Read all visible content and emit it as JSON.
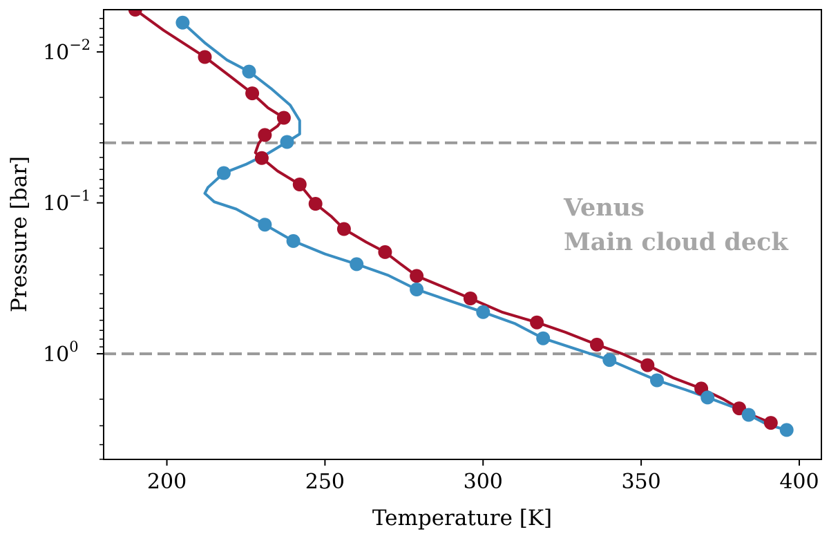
{
  "chart_data": {
    "type": "line",
    "xlabel": "Temperature [K]",
    "ylabel": "Pressure [bar]",
    "xlim": [
      180,
      407
    ],
    "ylim_log10": [
      -2.28,
      0.7
    ],
    "y_scale": "log",
    "y_inverted": true,
    "grid": false,
    "x_ticks": [
      {
        "value": 200,
        "label": "200"
      },
      {
        "value": 250,
        "label": "250"
      },
      {
        "value": 300,
        "label": "300"
      },
      {
        "value": 350,
        "label": "350"
      },
      {
        "value": 400,
        "label": "400"
      }
    ],
    "y_ticks": [
      {
        "log10": -2,
        "base": "10",
        "exp": "−2"
      },
      {
        "log10": -1,
        "base": "10",
        "exp": "−1"
      },
      {
        "log10": 0,
        "base": "10",
        "exp": "0"
      }
    ],
    "hlines": [
      {
        "pressure": 0.04,
        "color": "#999999",
        "style": "dashed"
      },
      {
        "pressure": 1.0,
        "color": "#999999",
        "style": "dashed"
      }
    ],
    "annotations": [
      {
        "lines": [
          "Venus",
          "Main cloud deck"
        ],
        "color": "#a6a6a6"
      }
    ],
    "series": [
      {
        "name": "red-profile",
        "color": "#a50f2a",
        "line": [
          [
            190,
            0.00525
          ],
          [
            199,
            0.0072
          ],
          [
            212,
            0.0108
          ],
          [
            220,
            0.0145
          ],
          [
            227,
            0.0188
          ],
          [
            232,
            0.0235
          ],
          [
            237,
            0.0273
          ],
          [
            235,
            0.031
          ],
          [
            231,
            0.0355
          ],
          [
            229,
            0.0405
          ],
          [
            228,
            0.0465
          ],
          [
            230,
            0.0505
          ],
          [
            235,
            0.0615
          ],
          [
            242,
            0.0755
          ],
          [
            247,
            0.1015
          ],
          [
            252,
            0.123
          ],
          [
            256,
            0.149
          ],
          [
            263,
            0.182
          ],
          [
            269,
            0.212
          ],
          [
            274,
            0.255
          ],
          [
            279,
            0.305
          ],
          [
            288,
            0.365
          ],
          [
            296,
            0.43
          ],
          [
            306,
            0.53
          ],
          [
            317,
            0.62
          ],
          [
            326,
            0.72
          ],
          [
            336,
            0.87
          ],
          [
            344,
            1.0
          ],
          [
            352,
            1.19
          ],
          [
            360,
            1.44
          ],
          [
            369,
            1.7
          ],
          [
            376,
            2.0
          ],
          [
            381,
            2.3
          ],
          [
            386,
            2.6
          ],
          [
            391,
            2.87
          ]
        ],
        "markers": [
          [
            190,
            0.00525
          ],
          [
            212,
            0.0108
          ],
          [
            227,
            0.0188
          ],
          [
            237,
            0.0273
          ],
          [
            231,
            0.0355
          ],
          [
            230,
            0.0505
          ],
          [
            242,
            0.0755
          ],
          [
            247,
            0.1015
          ],
          [
            256,
            0.149
          ],
          [
            269,
            0.212
          ],
          [
            279,
            0.305
          ],
          [
            296,
            0.43
          ],
          [
            317,
            0.62
          ],
          [
            336,
            0.87
          ],
          [
            352,
            1.19
          ],
          [
            369,
            1.7
          ],
          [
            381,
            2.3
          ],
          [
            391,
            2.87
          ]
        ]
      },
      {
        "name": "blue-profile",
        "color": "#3a8ec1",
        "line": [
          [
            205,
            0.0064
          ],
          [
            212,
            0.0087
          ],
          [
            219,
            0.0113
          ],
          [
            226,
            0.0135
          ],
          [
            233,
            0.0175
          ],
          [
            239,
            0.0225
          ],
          [
            242,
            0.0285
          ],
          [
            242,
            0.035
          ],
          [
            238,
            0.0395
          ],
          [
            232,
            0.047
          ],
          [
            225,
            0.0556
          ],
          [
            218,
            0.0635
          ],
          [
            213,
            0.079
          ],
          [
            212,
            0.0865
          ],
          [
            215,
            0.0985
          ],
          [
            222,
            0.11
          ],
          [
            231,
            0.1395
          ],
          [
            240,
            0.179
          ],
          [
            250,
            0.218
          ],
          [
            260,
            0.255
          ],
          [
            270,
            0.302
          ],
          [
            279,
            0.375
          ],
          [
            290,
            0.45
          ],
          [
            300,
            0.53
          ],
          [
            310,
            0.63
          ],
          [
            319,
            0.79
          ],
          [
            330,
            0.94
          ],
          [
            340,
            1.1
          ],
          [
            348,
            1.3
          ],
          [
            355,
            1.5
          ],
          [
            364,
            1.73
          ],
          [
            371,
            1.95
          ],
          [
            379,
            2.25
          ],
          [
            384,
            2.54
          ],
          [
            390,
            2.95
          ],
          [
            396,
            3.2
          ]
        ],
        "markers": [
          [
            205,
            0.0064
          ],
          [
            226,
            0.0135
          ],
          [
            238,
            0.0395
          ],
          [
            218,
            0.0635
          ],
          [
            231,
            0.1395
          ],
          [
            240,
            0.179
          ],
          [
            260,
            0.255
          ],
          [
            279,
            0.375
          ],
          [
            300,
            0.53
          ],
          [
            319,
            0.79
          ],
          [
            340,
            1.1
          ],
          [
            355,
            1.5
          ],
          [
            371,
            1.95
          ],
          [
            384,
            2.54
          ],
          [
            396,
            3.2
          ]
        ]
      }
    ]
  }
}
